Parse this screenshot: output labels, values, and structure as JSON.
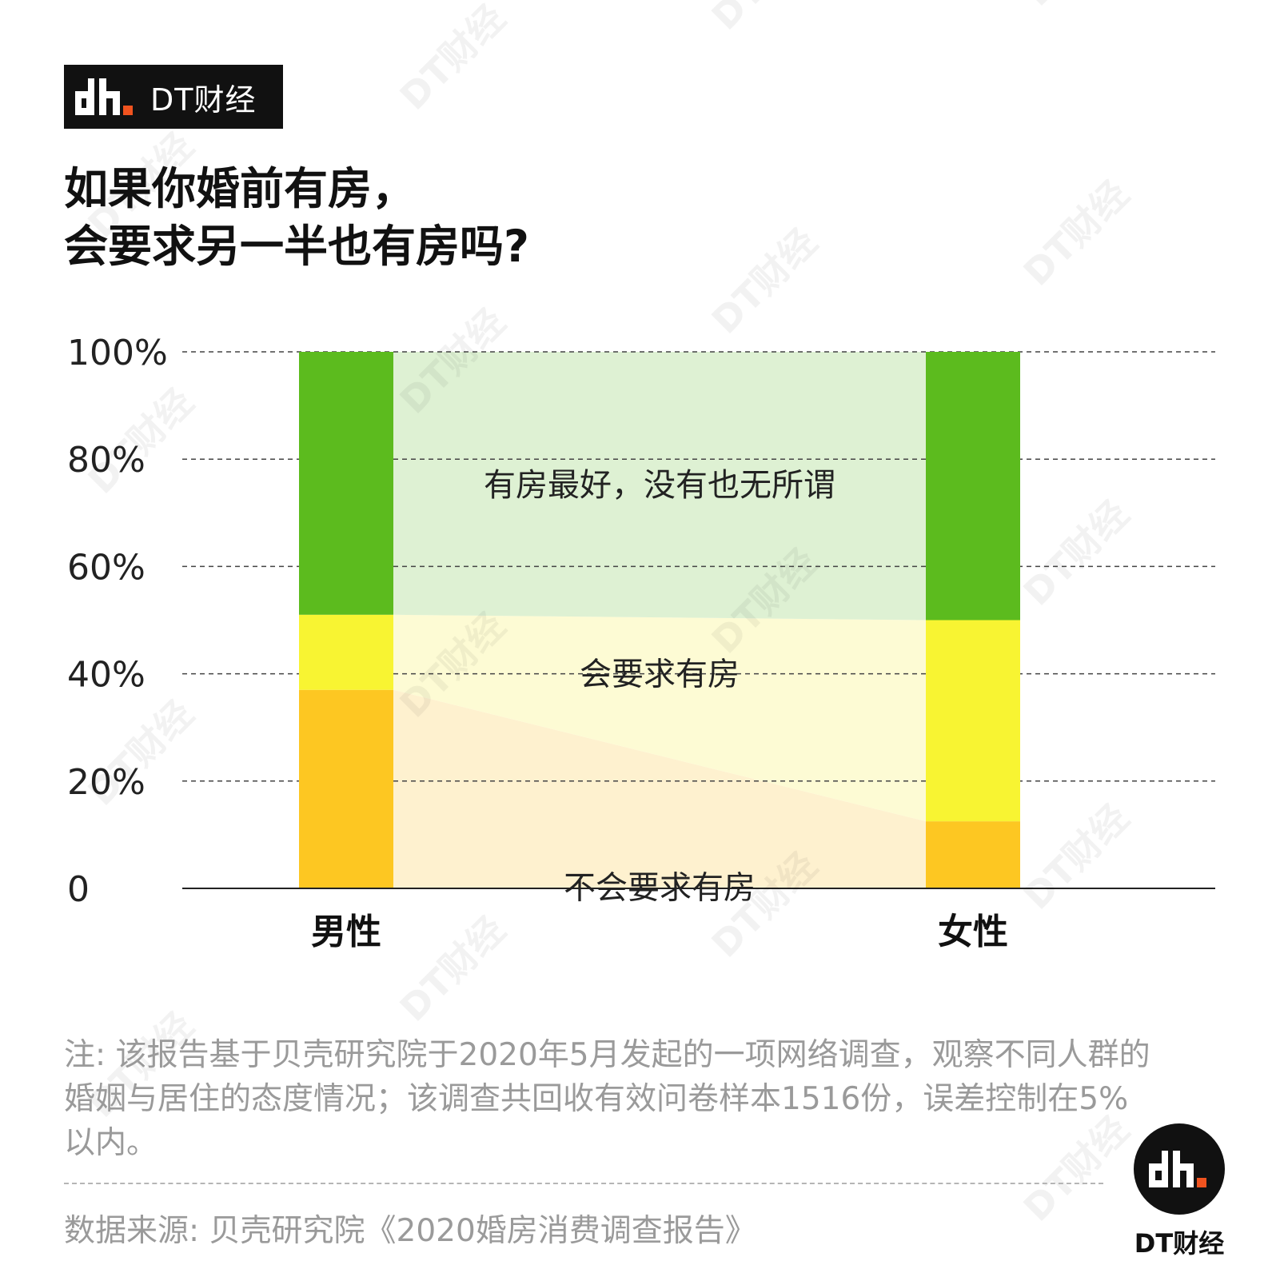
{
  "brand": {
    "name": "DT财经",
    "logo_icon": "dt-logo-icon"
  },
  "title_lines": [
    "如果你婚前有房，",
    "会要求另一半也有房吗?"
  ],
  "chart_data": {
    "type": "stacked-bar",
    "title": "如果你婚前有房，会要求另一半也有房吗?",
    "categories": [
      "男性",
      "女性"
    ],
    "series": [
      {
        "name": "不会要求有房",
        "values": [
          37,
          12.5
        ],
        "color": "#FDC722",
        "band_color": "#FEF1CF"
      },
      {
        "name": "会要求有房",
        "values": [
          14,
          37.5
        ],
        "color": "#F8F432",
        "band_color": "#FDFBD4"
      },
      {
        "name": "有房最好，没有也无所谓",
        "values": [
          49,
          50
        ],
        "color": "#5CBB1E",
        "band_color": "#DEF1D3"
      }
    ],
    "ylim": [
      0,
      100
    ],
    "yticks": [
      "0",
      "20%",
      "40%",
      "60%",
      "80%",
      "100%"
    ],
    "ytick_values": [
      0,
      20,
      40,
      60,
      80,
      100
    ],
    "grid": true
  },
  "note": "注: 该报告基于贝壳研究院于2020年5月发起的一项网络调查，观察不同人群的婚姻与居住的态度情况；该调查共回收有效问卷样本1516份，误差控制在5%以内。",
  "source": "数据来源: 贝壳研究院《2020婚房消费调查报告》",
  "watermark": "DT财经",
  "footer_logo": {
    "caption": "DT财经",
    "logo_icon": "dt-logo-icon"
  }
}
